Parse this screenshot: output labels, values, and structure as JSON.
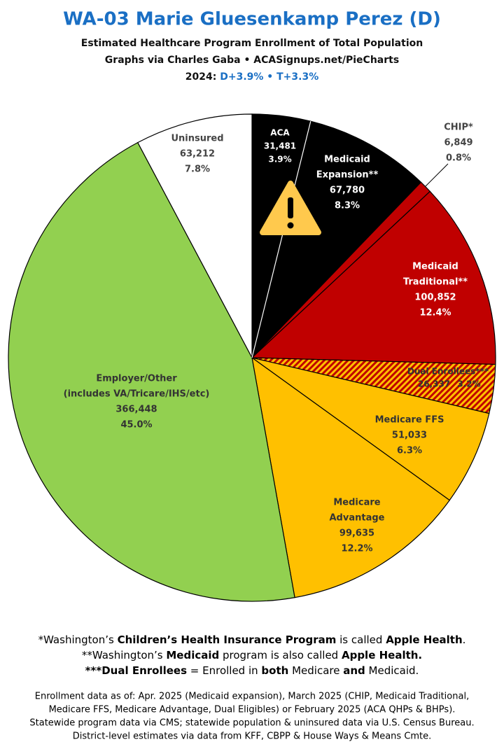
{
  "chart_data": {
    "type": "pie",
    "title": "WA-03 Marie Gluesenkamp Perez (D)",
    "subtitle_lines": [
      "Estimated Healthcare Program Enrollment of Total Population",
      "Graphs via Charles Gaba  •  ACASignups.net/PieCharts"
    ],
    "election": {
      "label": "2024:",
      "result": "D+3.9%  •  T+3.3%"
    },
    "labels": [
      [
        "ACA"
      ],
      [
        "Medicaid",
        "Expansion**"
      ],
      [
        "CHIP*"
      ],
      [
        "Medicaid",
        "Traditional**"
      ],
      [
        "Dual Enrollees***"
      ],
      [
        "Medicare FFS"
      ],
      [
        "Medicare",
        "Advantage"
      ],
      [
        "Employer/Other",
        "(includes VA/Tricare/IHS/etc)"
      ],
      [
        "Uninsured"
      ]
    ],
    "values": [
      31481,
      67780,
      6849,
      100852,
      26337,
      51033,
      99635,
      366448,
      63212
    ],
    "value_labels": [
      "31,481",
      "67,780",
      "6,849",
      "100,852",
      "26,337",
      "51,033",
      "99,635",
      "366,448",
      "63,212"
    ],
    "shares": [
      3.9,
      8.3,
      0.8,
      12.4,
      3.2,
      6.3,
      12.2,
      45.0,
      7.8
    ],
    "share_labels": [
      "3.9%",
      "8.3%",
      "0.8%",
      "12.4%",
      "3.2%",
      "6.3%",
      "12.2%",
      "45.0%",
      "7.8%"
    ],
    "colors": [
      "#000000",
      "#000000",
      "#c00000",
      "#c00000",
      "#c00000",
      "#ffc000",
      "#ffc000",
      "#92d050",
      "#ffffff"
    ],
    "hatched": [
      false,
      false,
      false,
      false,
      true,
      false,
      false,
      false,
      false
    ],
    "footnotes": [
      [
        {
          "text": "*Washington’s ",
          "bold": false
        },
        {
          "text": "Children’s Health Insurance Program",
          "bold": true
        },
        {
          "text": " is called ",
          "bold": false
        },
        {
          "text": "Apple Health",
          "bold": true
        },
        {
          "text": ".",
          "bold": false
        }
      ],
      [
        {
          "text": "**Washington’s ",
          "bold": false
        },
        {
          "text": "Medicaid",
          "bold": true
        },
        {
          "text": " program is also called ",
          "bold": false
        },
        {
          "text": "Apple Health.",
          "bold": true
        }
      ],
      [
        {
          "text": "***Dual Enrollees",
          "bold": true
        },
        {
          "text": " = Enrolled in ",
          "bold": false
        },
        {
          "text": "both",
          "bold": true
        },
        {
          "text": " Medicare ",
          "bold": false
        },
        {
          "text": "and",
          "bold": true
        },
        {
          "text": " Medicaid.",
          "bold": false
        }
      ]
    ],
    "source_lines": [
      "Enrollment data as of: Apr. 2025 (Medicaid expansion), March 2025 (CHIP, Medicaid Traditional,",
      "Medicare FFS, Medicare Advantage, Dual Eligibles) or February 2025 (ACA QHPs & BHPs).",
      "Statewide program data via CMS; statewide population & uninsured data via U.S. Census Bureau.",
      "District-level estimates via data from KFF, CBPP & House Ways & Means Cmte."
    ]
  }
}
